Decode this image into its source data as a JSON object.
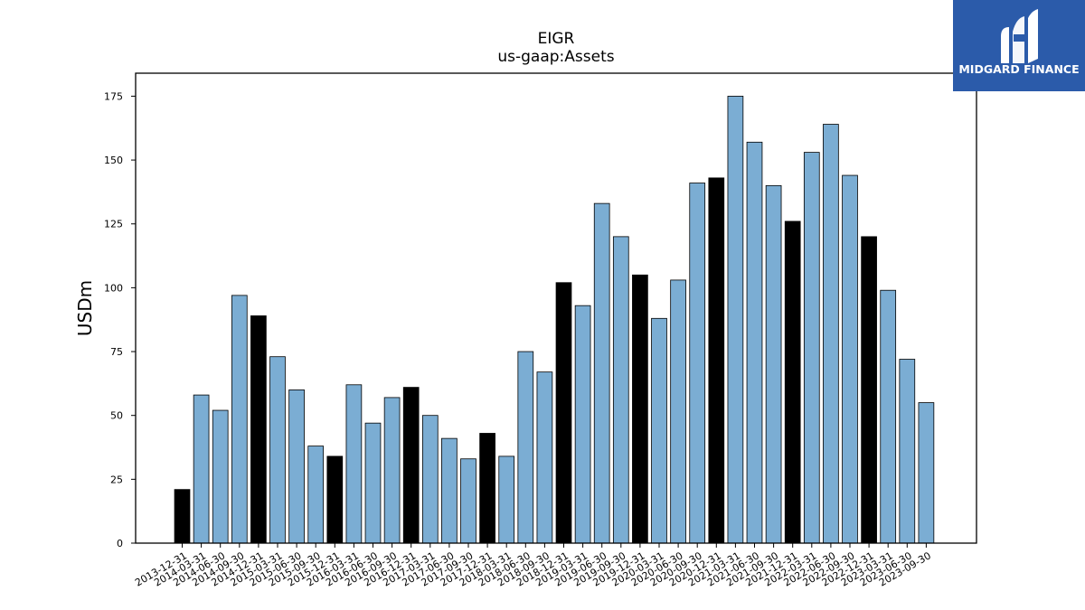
{
  "brand": {
    "name": "MIDGARD FINANCE",
    "logo_icon": "midgard-m-logo-icon",
    "bg_color": "#2B5BAA"
  },
  "colors": {
    "regular_bar": "#7BADD3",
    "highlight_bar": "#000000",
    "bar_edge": "#000000"
  },
  "chart_data": {
    "type": "bar",
    "title": "EIGR",
    "subtitle": "us-gaap:Assets",
    "xlabel": "",
    "ylabel": "USDm",
    "ylim": [
      0,
      184
    ],
    "yticks": [
      0,
      25,
      50,
      75,
      100,
      125,
      150,
      175
    ],
    "grid": false,
    "legend": "none",
    "categories": [
      "2013-12-31",
      "2014-03-31",
      "2014-06-30",
      "2014-09-30",
      "2014-12-31",
      "2015-03-31",
      "2015-06-30",
      "2015-09-30",
      "2015-12-31",
      "2016-03-31",
      "2016-06-30",
      "2016-09-30",
      "2016-12-31",
      "2017-03-31",
      "2017-06-30",
      "2017-09-30",
      "2017-12-31",
      "2018-03-31",
      "2018-06-30",
      "2018-09-30",
      "2018-12-31",
      "2019-03-31",
      "2019-06-30",
      "2019-09-30",
      "2019-12-31",
      "2020-03-31",
      "2020-06-30",
      "2020-09-30",
      "2020-12-31",
      "2021-03-31",
      "2021-06-30",
      "2021-09-30",
      "2021-12-31",
      "2022-03-31",
      "2022-06-30",
      "2022-09-30",
      "2022-12-31",
      "2023-03-31",
      "2023-06-30",
      "2023-09-30"
    ],
    "values": [
      21,
      58,
      52,
      97,
      89,
      73,
      60,
      38,
      34,
      62,
      47,
      57,
      61,
      50,
      41,
      33,
      43,
      34,
      75,
      67,
      102,
      93,
      133,
      120,
      105,
      88,
      103,
      141,
      143,
      175,
      157,
      140,
      126,
      153,
      164,
      144,
      120,
      99,
      72,
      55
    ],
    "highlighted": [
      true,
      false,
      false,
      false,
      true,
      false,
      false,
      false,
      true,
      false,
      false,
      false,
      true,
      false,
      false,
      false,
      true,
      false,
      false,
      false,
      true,
      false,
      false,
      false,
      true,
      false,
      false,
      false,
      true,
      false,
      false,
      false,
      true,
      false,
      false,
      false,
      true,
      false,
      false,
      false
    ]
  }
}
